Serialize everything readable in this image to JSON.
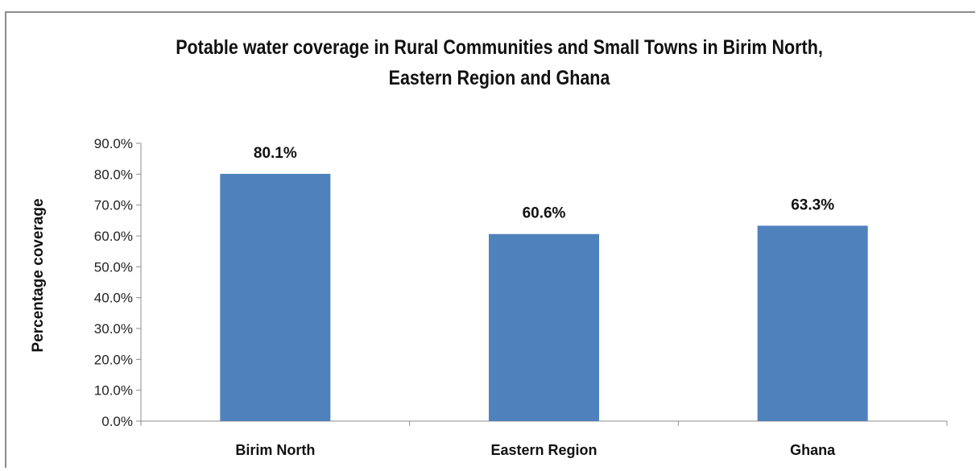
{
  "chart_data": {
    "type": "bar",
    "title_lines": [
      "Potable water coverage in Rural Communities and Small Towns in Birim North,",
      "Eastern Region and Ghana"
    ],
    "xlabel": "",
    "ylabel": "Percentage coverage",
    "ylim": [
      0,
      90
    ],
    "y_ticks": [
      0,
      10,
      20,
      30,
      40,
      50,
      60,
      70,
      80,
      90
    ],
    "y_tick_labels": [
      "0.0%",
      "10.0%",
      "20.0%",
      "30.0%",
      "40.0%",
      "50.0%",
      "60.0%",
      "70.0%",
      "80.0%",
      "90.0%"
    ],
    "categories": [
      "Birim North",
      "Eastern Region",
      "Ghana"
    ],
    "values": [
      80.1,
      60.6,
      63.3
    ],
    "data_labels": [
      "80.1%",
      "60.6%",
      "63.3%"
    ],
    "bar_color": "#4f81bd",
    "grid": false,
    "legend": "none"
  }
}
